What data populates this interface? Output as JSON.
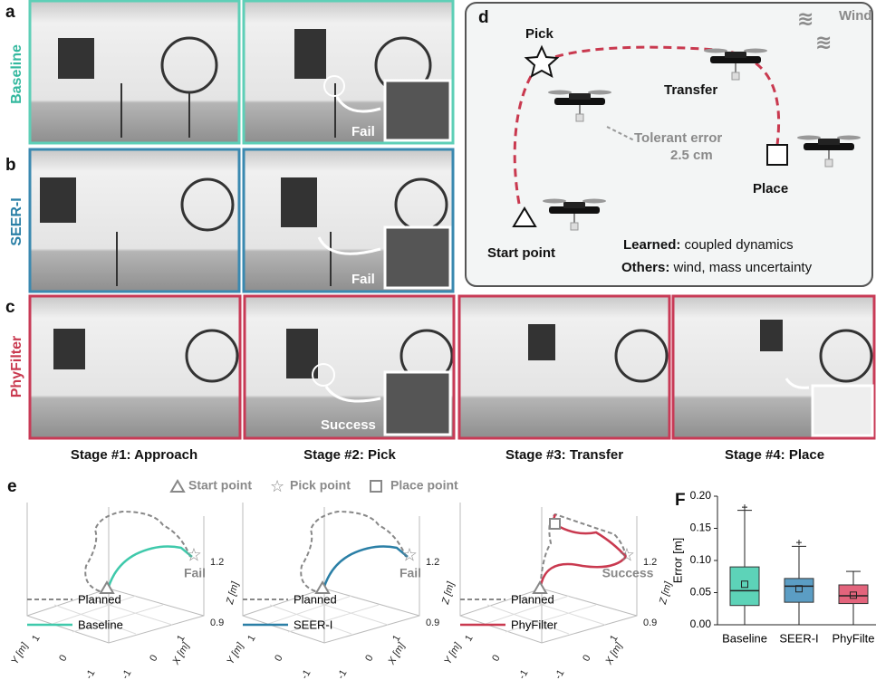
{
  "figure": {
    "a": {
      "label": "a",
      "row_label": "Baseline",
      "annotation": "Fail"
    },
    "b": {
      "label": "b",
      "row_label": "SEER-I",
      "annotation": "Fail"
    },
    "c": {
      "label": "c",
      "row_label": "PhyFilter",
      "annotation": "Success",
      "stages": [
        "Stage #1: Approach",
        "Stage #2: Pick",
        "Stage #3: Transfer",
        "Stage #4: Place"
      ]
    },
    "d": {
      "label": "d",
      "pick": "Pick",
      "transfer": "Transfer",
      "wind": "Wind",
      "tolerant_error": "Tolerant error",
      "tolerance": "2.5 cm",
      "place": "Place",
      "start": "Start point",
      "learned_label": "Learned:",
      "learned_text": "coupled dynamics",
      "others_label": "Others:",
      "others_text": "wind, mass uncertainty"
    },
    "e": {
      "label": "e",
      "legend": [
        "Start point",
        "Pick point",
        "Place point"
      ],
      "z_label": "Z [m]",
      "y_label": "Y [m]",
      "x_label": "X [m]",
      "z_ticks": [
        "1.2",
        "0.9"
      ],
      "xy_ticks": [
        "-1",
        "0",
        "1"
      ],
      "plots": [
        {
          "result": "Fail",
          "planned": "Planned",
          "method": "Baseline",
          "color": "#3fc9ab"
        },
        {
          "result": "Fail",
          "planned": "Planned",
          "method": "SEER-I",
          "color": "#2a7fa6"
        },
        {
          "result": "Success",
          "planned": "Planned",
          "method": "PhyFilter",
          "color": "#c9394f"
        }
      ]
    },
    "f": {
      "label": "F"
    }
  },
  "chart_data": {
    "type": "box",
    "y_label": "Error [m]",
    "categories": [
      "Baseline",
      "SEER-I",
      "PhyFilte"
    ],
    "colors": [
      "#5dd3b8",
      "#5b9dc4",
      "#e3647c"
    ],
    "boxes": [
      {
        "min": 0,
        "q1": 0.03,
        "median": 0.053,
        "q3": 0.09,
        "max": 0.178,
        "mean": 0.063,
        "outliers": [
          0.183
        ]
      },
      {
        "min": 0,
        "q1": 0.035,
        "median": 0.06,
        "q3": 0.072,
        "max": 0.122,
        "mean": 0.056,
        "outliers": [
          0.128
        ]
      },
      {
        "min": 0,
        "q1": 0.033,
        "median": 0.045,
        "q3": 0.062,
        "max": 0.083,
        "mean": 0.046,
        "outliers": []
      }
    ],
    "ylim": [
      0,
      0.2
    ],
    "yticks": [
      {
        "value": 0,
        "label": "0.00"
      },
      0.05,
      {
        "value": 0.1,
        "label": "0.10"
      },
      0.15,
      {
        "value": 0.2,
        "label": "0.20"
      }
    ]
  }
}
